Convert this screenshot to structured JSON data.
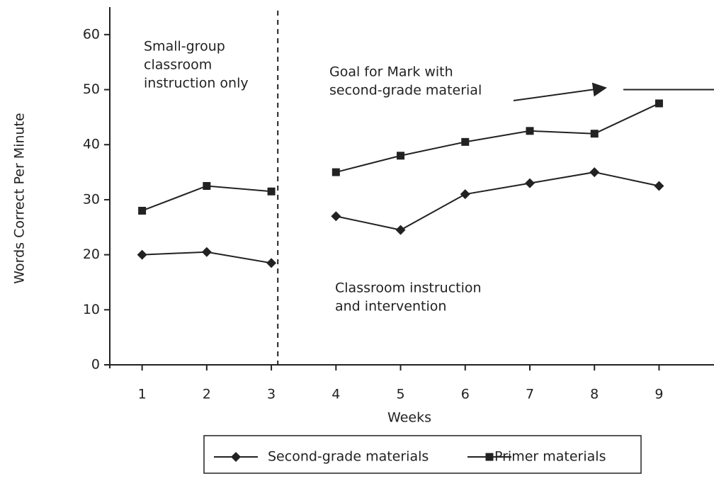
{
  "chart_data": {
    "type": "line",
    "x_label": "Weeks",
    "y_label": "Words Correct Per Minute",
    "x": [
      1,
      2,
      3,
      4,
      5,
      6,
      7,
      8,
      9
    ],
    "series": [
      {
        "name": "Second-grade materials",
        "color": "#222222",
        "marker": "diamond",
        "values": [
          20,
          20.5,
          18.5,
          27,
          24.5,
          31,
          33,
          35,
          32.5
        ]
      },
      {
        "name": "Primer materials",
        "color": "#222222",
        "marker": "square",
        "values": [
          28,
          32.5,
          31.5,
          35,
          38,
          40.5,
          42.5,
          42,
          47.5
        ]
      }
    ],
    "xlim": [
      0.5,
      9.85
    ],
    "ylim": [
      0,
      65
    ],
    "xticks": [
      1,
      2,
      3,
      4,
      5,
      6,
      7,
      8,
      9
    ],
    "yticks": [
      0,
      10,
      20,
      30,
      40,
      50,
      60
    ],
    "phase_line": 3.1,
    "goal": 50,
    "annotations": [
      {
        "lines": [
          "Small-group",
          "classroom",
          "instruction only"
        ]
      },
      {
        "lines": [
          "Goal for Mark with",
          "second-grade material"
        ]
      },
      {
        "lines": [
          "Classroom instruction",
          "and intervention"
        ]
      }
    ],
    "legend": "bottom"
  }
}
